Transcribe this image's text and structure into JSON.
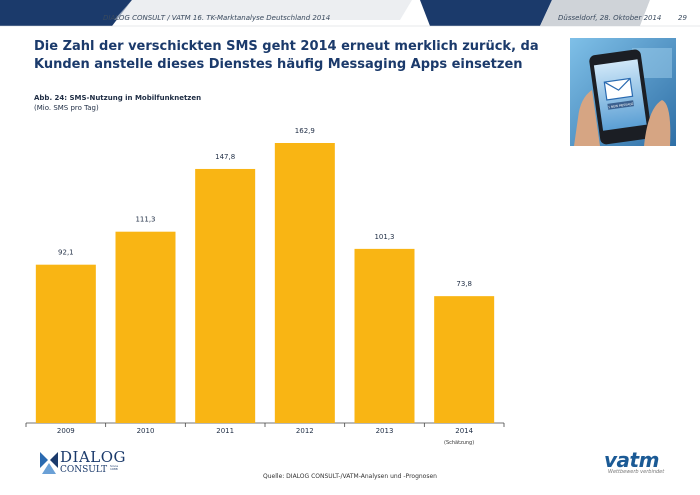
{
  "header": {
    "left_text": "DIALOG CONSULT / VATM 16. TK-Marktanalyse Deutschland 2014",
    "date": "Düsseldorf, 28. Oktober 2014",
    "page_number": "29",
    "colors": {
      "navy": "#1b3a6b",
      "grey": "#cfd3d8",
      "accent": "#2a6ab0"
    }
  },
  "title": "Die Zahl der verschickten SMS geht 2014 erneut merklich zurück, da Kunden anstelle dieses Dienstes häufig Messaging Apps einsetzen",
  "figure": {
    "caption": "Abb. 24: SMS-Nutzung in Mobilfunknetzen",
    "subcaption": "(Mio. SMS pro Tag)"
  },
  "photo": {
    "screen_label": "1 NEW MESSAGE",
    "icon": "envelope-icon"
  },
  "chart_data": {
    "type": "bar",
    "categories": [
      "2009",
      "2010",
      "2011",
      "2012",
      "2013",
      "2014"
    ],
    "values": [
      92.1,
      111.3,
      147.8,
      162.9,
      101.3,
      73.8
    ],
    "value_labels": [
      "92,1",
      "111,3",
      "147,8",
      "162,9",
      "101,3",
      "73,8"
    ],
    "ylim": [
      0,
      180
    ],
    "color": "#f9b514",
    "grid": false,
    "legend": "none",
    "annotation": "(Schätzung)"
  },
  "source": "Quelle: DIALOG CONSULT-/VATM-Analysen und -Prognosen",
  "logos": {
    "dialog_line1": "DIALOG",
    "dialog_line2": "CONSULT",
    "dialog_tiny": "Since 1988",
    "vatm_word": "vatm",
    "vatm_tagline": "Wettbewerb verbindet"
  }
}
